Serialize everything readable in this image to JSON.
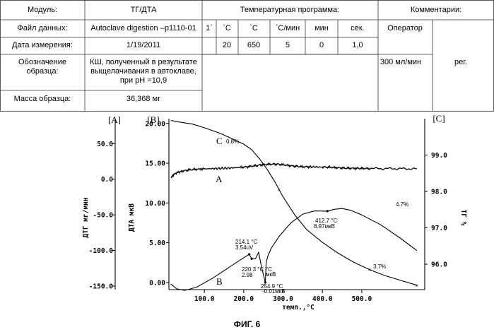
{
  "table": {
    "header": {
      "module_label": "Модуль:",
      "module_value": "ТГ/ДТА",
      "temp_program": "Температурная программа:",
      "comments": "Комментарии:"
    },
    "data_file_label": "Файл данных:",
    "data_file_value": "Autoclave digestion –p1110-01",
    "program_headers": [
      "1`",
      "`C",
      "`C",
      "`C/мин",
      "мин",
      "сек."
    ],
    "operator_label": "Оператор",
    "measure_date_label": "Дата измерения:",
    "measure_date_value": "1/19/2011",
    "program_values": [
      "20",
      "650",
      "5",
      "0",
      "1,0"
    ],
    "sample_label": "Обозначение образца:",
    "sample_value": "КШ, полученный в результате выщелачивания в автоклаве, при pH =10,9",
    "flow": "300 мл/мин",
    "reg": "рег.",
    "mass_label": "Масса образца:",
    "mass_value": "36,368 мг"
  },
  "chart_data": {
    "type": "line",
    "panel_labels": [
      "[A]",
      "[B]",
      "[C]"
    ],
    "xlabel": "темп.,°С",
    "x_ticks": [
      "100.0",
      "200.0",
      "300.0",
      "400.0",
      "500.0"
    ],
    "xlim": [
      10,
      660
    ],
    "left_axis": {
      "label": "ДТГ мг/мин",
      "ticks": [
        "50.0",
        "0.0",
        "-50.0",
        "-100.0",
        "-150.0"
      ],
      "values": [
        50,
        0,
        -50,
        -100,
        -150
      ],
      "range": [
        -155,
        85
      ]
    },
    "mid_axis": {
      "label": "ДТА мкВ",
      "ticks": [
        "20.00",
        "15.00",
        "10.00",
        "5.00",
        "0.00"
      ],
      "values": [
        20,
        15,
        10,
        5,
        0
      ],
      "range": [
        -0.9,
        20.6
      ]
    },
    "right_axis": {
      "label": "ТГ %",
      "ticks": [
        "99.0",
        "98.0",
        "97.0",
        "96.0"
      ],
      "values": [
        99,
        98,
        97,
        96
      ],
      "range": [
        95.3,
        100.0
      ]
    },
    "series": [
      {
        "name": "A",
        "axis": "left",
        "points": [
          [
            15,
            2
          ],
          [
            25,
            8
          ],
          [
            40,
            11
          ],
          [
            60,
            13
          ],
          [
            80,
            14
          ],
          [
            100,
            14.5
          ],
          [
            130,
            15
          ],
          [
            160,
            15.5
          ],
          [
            190,
            16.5
          ],
          [
            210,
            17.5
          ],
          [
            230,
            19
          ],
          [
            250,
            20.5
          ],
          [
            270,
            21.2
          ],
          [
            290,
            21
          ],
          [
            310,
            19.5
          ],
          [
            330,
            18.3
          ],
          [
            350,
            17.5
          ],
          [
            370,
            17.3
          ],
          [
            400,
            17
          ],
          [
            420,
            16.8
          ],
          [
            440,
            16
          ],
          [
            460,
            15.5
          ],
          [
            480,
            15.3
          ],
          [
            500,
            15.2
          ],
          [
            520,
            15.1
          ],
          [
            560,
            15
          ],
          [
            600,
            14.8
          ],
          [
            640,
            14.6
          ]
        ]
      },
      {
        "name": "B",
        "axis": "mid",
        "points": [
          [
            15,
            -0.2
          ],
          [
            30,
            -0.8
          ],
          [
            50,
            -1
          ],
          [
            80,
            -0.6
          ],
          [
            120,
            0.5
          ],
          [
            160,
            1.8
          ],
          [
            190,
            2.8
          ],
          [
            214.1,
            3.54
          ],
          [
            218,
            3.2
          ],
          [
            220.3,
            2.98
          ],
          [
            230,
            3
          ],
          [
            238,
            3.8
          ],
          [
            245,
            2
          ],
          [
            254.9,
            -0.01
          ],
          [
            257,
            2.5
          ],
          [
            262,
            3.4
          ],
          [
            270,
            4.3
          ],
          [
            290,
            5.8
          ],
          [
            320,
            7.5
          ],
          [
            350,
            8.6
          ],
          [
            380,
            9
          ],
          [
            412.7,
            8.97
          ],
          [
            430,
            9.2
          ],
          [
            450,
            9.3
          ],
          [
            470,
            9.1
          ],
          [
            500,
            8.5
          ],
          [
            550,
            7.2
          ],
          [
            600,
            5.5
          ],
          [
            640,
            4
          ]
        ]
      },
      {
        "name": "C",
        "axis": "right",
        "points": [
          [
            15,
            99.95
          ],
          [
            40,
            99.9
          ],
          [
            70,
            99.85
          ],
          [
            100,
            99.75
          ],
          [
            140,
            99.6
          ],
          [
            170,
            99.45
          ],
          [
            200,
            99.3
          ],
          [
            220,
            99.15
          ],
          [
            240,
            98.9
          ],
          [
            260,
            98.6
          ],
          [
            280,
            98.25
          ],
          [
            300,
            97.85
          ],
          [
            330,
            97.35
          ],
          [
            360,
            96.95
          ],
          [
            400,
            96.6
          ],
          [
            440,
            96.3
          ],
          [
            480,
            96.05
          ],
          [
            520,
            95.85
          ],
          [
            560,
            95.68
          ],
          [
            600,
            95.55
          ],
          [
            640,
            95.42
          ]
        ]
      }
    ],
    "annotations": [
      "C",
      "0.8%",
      "A",
      "214.1 °C",
      "3.54uV",
      "220.3 °C",
      "2.98",
      "°C",
      "мкВ",
      "254.9 °C",
      "-0.01мкВ",
      "412.7 °C",
      "8.97мкВ",
      "4.7%",
      "3.7%",
      "B"
    ]
  },
  "figure_caption": "ФИГ. 6"
}
